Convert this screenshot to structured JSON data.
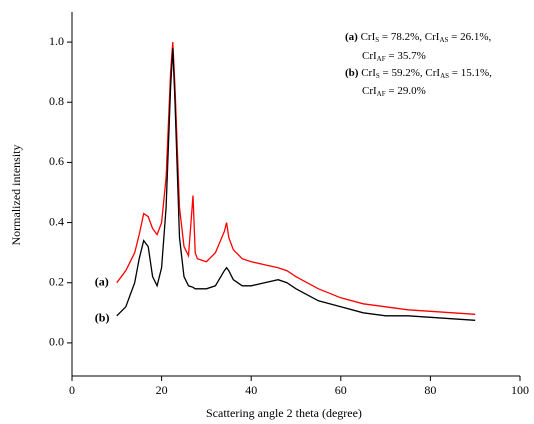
{
  "chart_data": {
    "type": "line",
    "x_label": "Scattering angle 2 theta (degree)",
    "y_label": "Normalized intensity",
    "x": [
      10,
      12,
      14,
      15,
      16,
      17,
      18,
      19,
      20,
      21,
      22,
      22.5,
      23,
      24,
      25,
      26,
      27,
      27.5,
      28,
      30,
      32,
      34,
      34.5,
      35,
      36,
      38,
      40,
      43,
      46,
      48,
      50,
      55,
      60,
      65,
      70,
      75,
      80,
      85,
      90
    ],
    "series": [
      {
        "name": "(a)",
        "color": "#ff0000",
        "values": [
          0.2,
          0.24,
          0.3,
          0.36,
          0.43,
          0.42,
          0.38,
          0.36,
          0.4,
          0.55,
          0.9,
          1.0,
          0.85,
          0.45,
          0.32,
          0.29,
          0.49,
          0.3,
          0.28,
          0.27,
          0.3,
          0.37,
          0.4,
          0.35,
          0.31,
          0.28,
          0.27,
          0.26,
          0.25,
          0.24,
          0.22,
          0.18,
          0.15,
          0.13,
          0.12,
          0.11,
          0.105,
          0.1,
          0.095
        ]
      },
      {
        "name": "(b)",
        "color": "#000000",
        "values": [
          0.09,
          0.12,
          0.2,
          0.28,
          0.34,
          0.32,
          0.22,
          0.19,
          0.25,
          0.45,
          0.85,
          0.98,
          0.8,
          0.35,
          0.22,
          0.19,
          0.185,
          0.18,
          0.18,
          0.18,
          0.19,
          0.24,
          0.25,
          0.24,
          0.21,
          0.19,
          0.19,
          0.2,
          0.21,
          0.2,
          0.18,
          0.14,
          0.12,
          0.1,
          0.09,
          0.09,
          0.085,
          0.08,
          0.075
        ]
      }
    ],
    "xlim": [
      0,
      100
    ],
    "xticks": [
      0,
      20,
      40,
      60,
      80,
      100
    ],
    "ylim": [
      -0.11,
      1.1
    ],
    "yticks": [
      {
        "value": 0,
        "label": "0.0"
      },
      0.2,
      0.4,
      0.6,
      0.8,
      {
        "value": 1,
        "label": "1.0"
      }
    ],
    "annotation_lines": [
      [
        {
          "text": "(a)",
          "bold": true
        },
        {
          "text": " CrI"
        },
        {
          "text": "S",
          "sub": true
        },
        {
          "text": " = 78.2%, CrI"
        },
        {
          "text": "AS",
          "sub": true
        },
        {
          "text": " = 26.1%,"
        }
      ],
      [
        {
          "text": "CrI"
        },
        {
          "text": "AF",
          "sub": true
        },
        {
          "text": " = 35.7%"
        }
      ],
      [
        {
          "text": "(b)",
          "bold": true
        },
        {
          "text": " CrI"
        },
        {
          "text": "S",
          "sub": true
        },
        {
          "text": " = 59.2%, CrI"
        },
        {
          "text": "AS",
          "sub": true
        },
        {
          "text": " = 15.1%,"
        }
      ],
      [
        {
          "text": "CrI"
        },
        {
          "text": "AF",
          "sub": true
        },
        {
          "text": " = 29.0%"
        }
      ]
    ]
  }
}
